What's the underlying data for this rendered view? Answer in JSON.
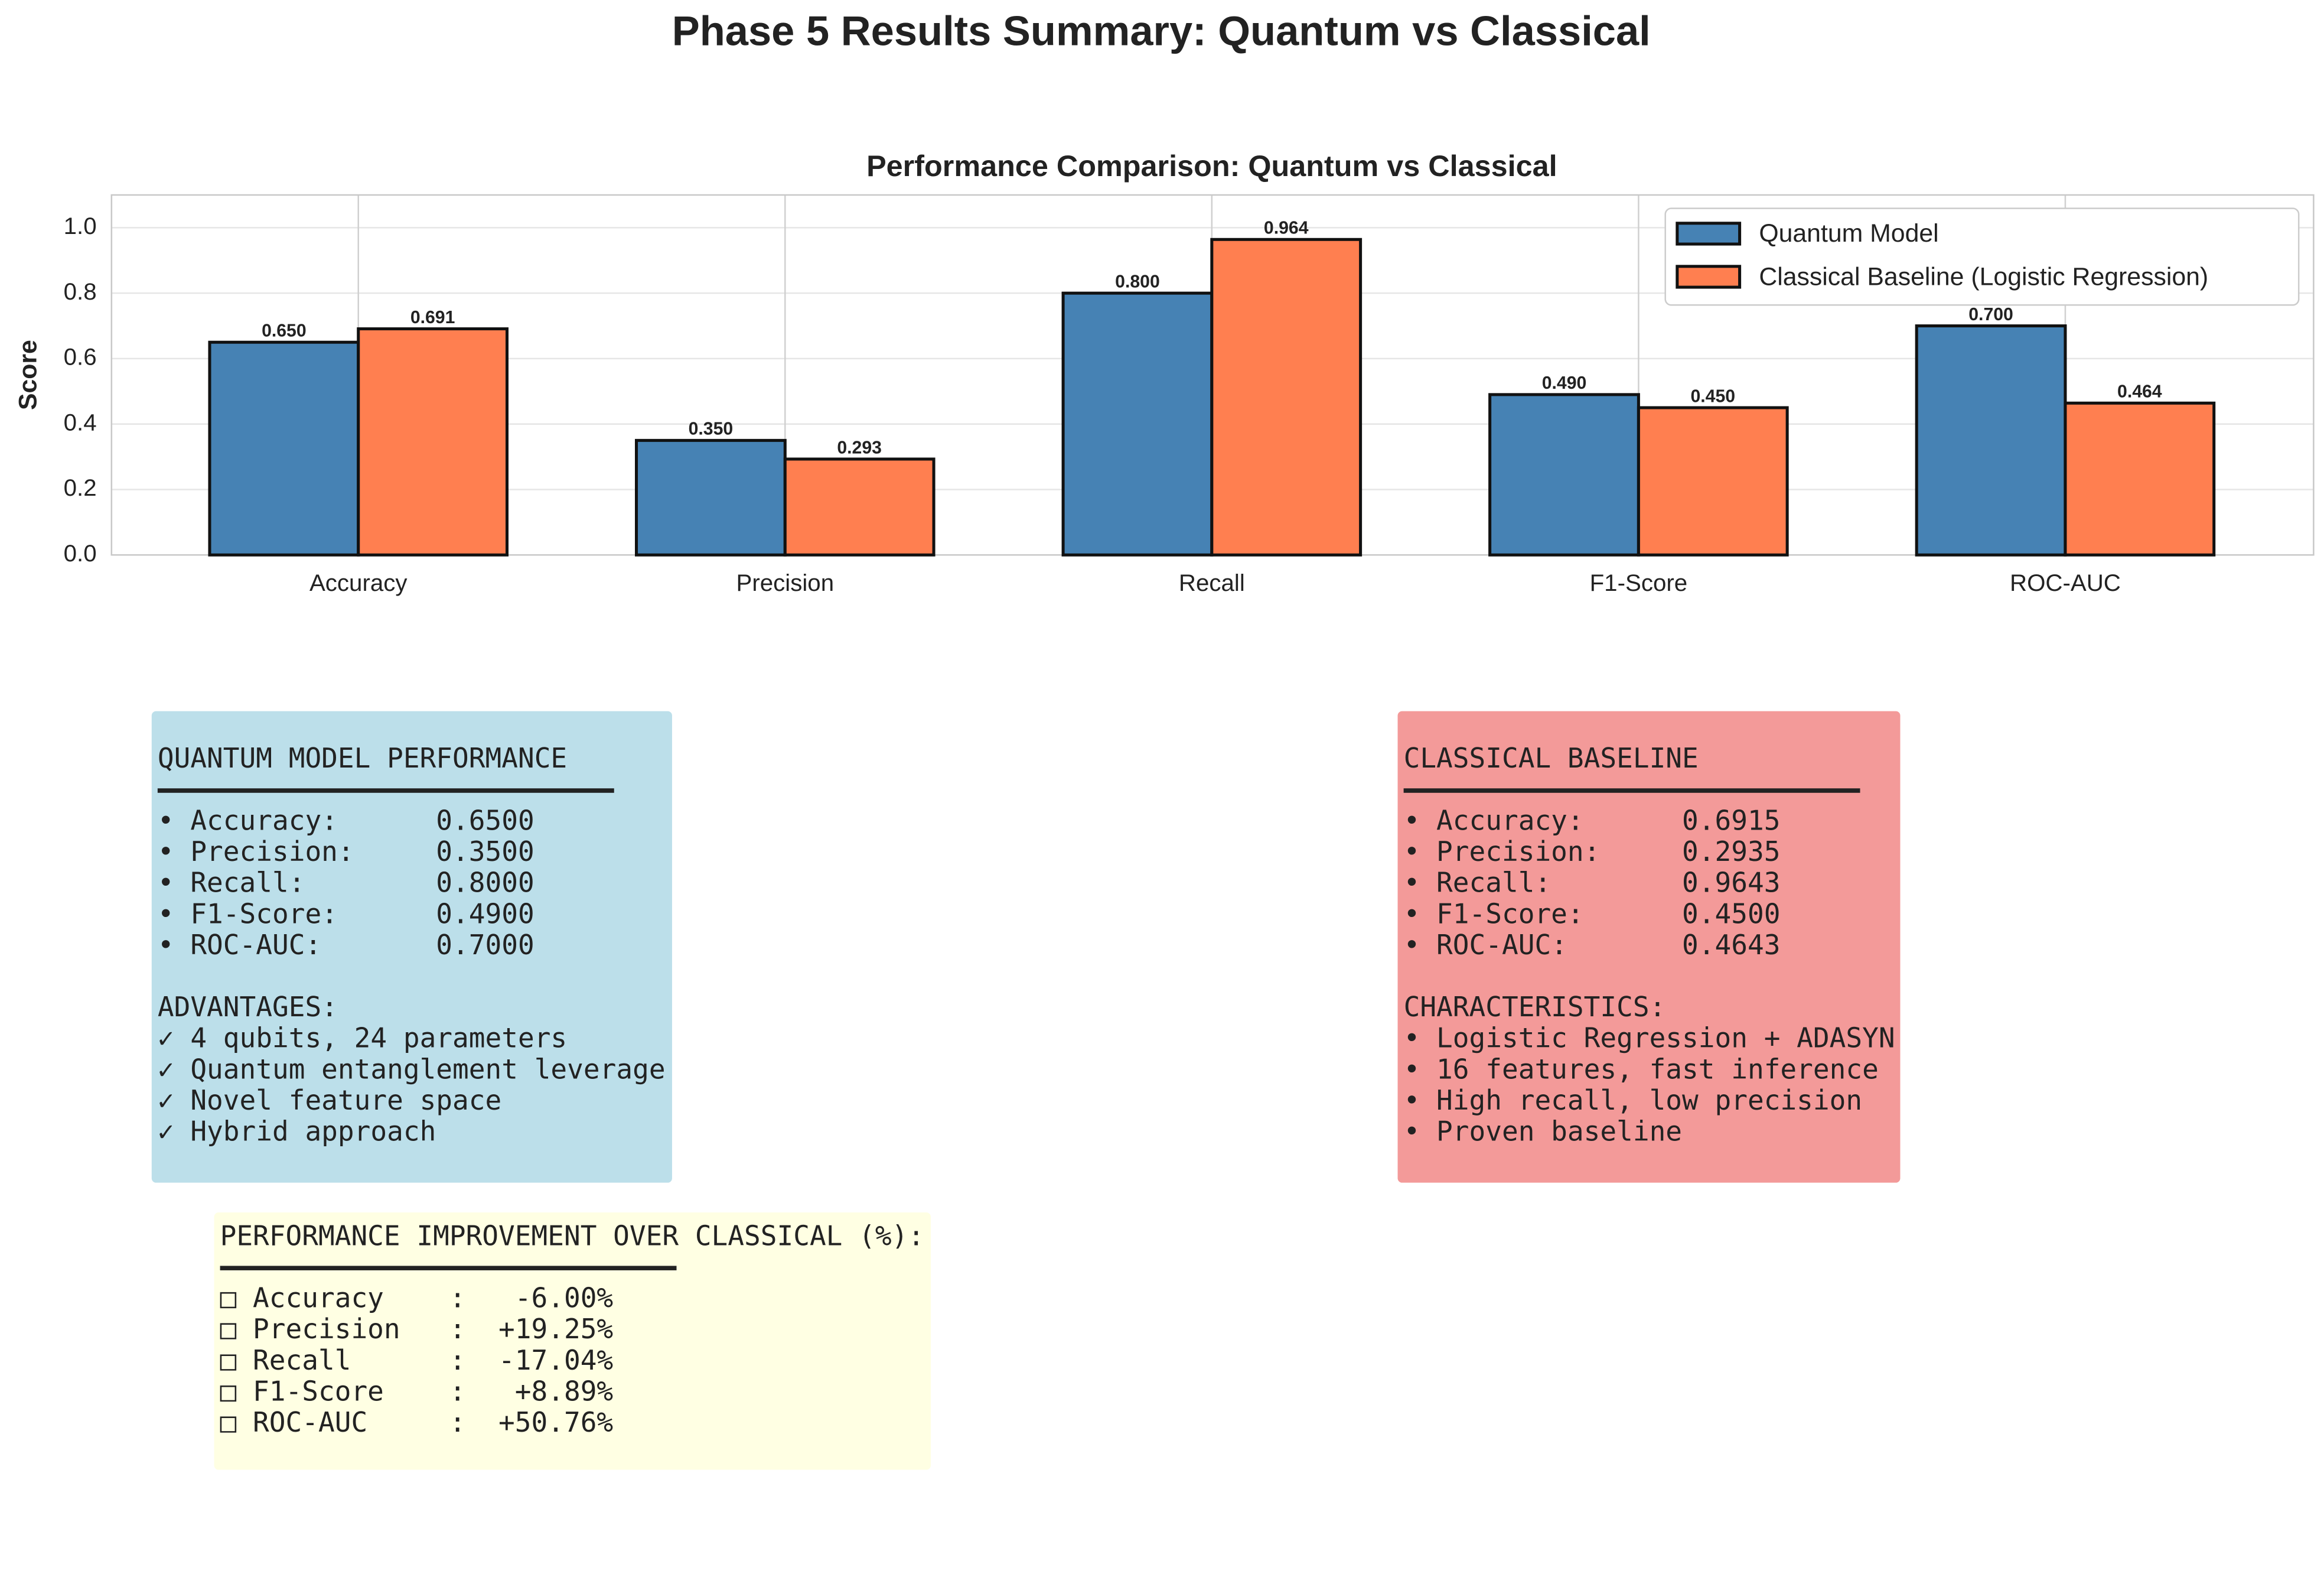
{
  "title": "Phase 5 Results Summary: Quantum vs Classical",
  "chart_data": {
    "type": "bar",
    "title": "Performance Comparison: Quantum vs Classical",
    "y_label": "Score",
    "categories": [
      "Accuracy",
      "Precision",
      "Recall",
      "F1-Score",
      "ROC-AUC"
    ],
    "series": [
      {
        "name": "Quantum Model",
        "color": "#4682b4",
        "values": [
          0.65,
          0.35,
          0.8,
          0.49,
          0.7
        ],
        "value_labels": [
          "0.650",
          "0.350",
          "0.800",
          "0.490",
          "0.700"
        ]
      },
      {
        "name": "Classical Baseline (Logistic Regression)",
        "color": "#ff7f50",
        "values": [
          0.691,
          0.293,
          0.964,
          0.45,
          0.464
        ],
        "value_labels": [
          "0.691",
          "0.293",
          "0.964",
          "0.450",
          "0.464"
        ]
      }
    ],
    "ylim": [
      0,
      1.1
    ],
    "yticks": [
      {
        "value": 0,
        "label": "0.0"
      },
      0.2,
      0.4,
      0.6,
      0.8,
      {
        "value": 1,
        "label": "1.0"
      }
    ],
    "grid": true,
    "legend": "upper right"
  },
  "panels": [
    {
      "heading": "QUANTUM MODEL PERFORMANCE",
      "color": "#bcdfea",
      "lines": [
        "• Accuracy:      0.6500",
        "• Precision:     0.3500",
        "• Recall:        0.8000",
        "• F1-Score:      0.4900",
        "• ROC-AUC:       0.7000"
      ],
      "heading2": "ADVANTAGES:",
      "lines2": [
        "✓ 4 qubits, 24 parameters",
        "✓ Quantum entanglement leverage",
        "✓ Novel feature space",
        "✓ Hybrid approach"
      ]
    },
    {
      "heading": "CLASSICAL BASELINE",
      "color": "#f39a99",
      "lines": [
        "• Accuracy:      0.6915",
        "• Precision:     0.2935",
        "• Recall:        0.9643",
        "• F1-Score:      0.4500",
        "• ROC-AUC:       0.4643"
      ],
      "heading2": "CHARACTERISTICS:",
      "lines2": [
        "• Logistic Regression + ADASYN",
        "• 16 features, fast inference",
        "• High recall, low precision",
        "• Proven baseline"
      ]
    },
    {
      "heading": "PERFORMANCE IMPROVEMENT OVER CLASSICAL (%):",
      "color": "#ffffe3",
      "lines": [
        "□ Accuracy    :   -6.00%",
        "□ Precision   :  +19.25%",
        "□ Recall      :  -17.04%",
        "□ F1-Score    :   +8.89%",
        "□ ROC-AUC     :  +50.76%"
      ]
    }
  ]
}
